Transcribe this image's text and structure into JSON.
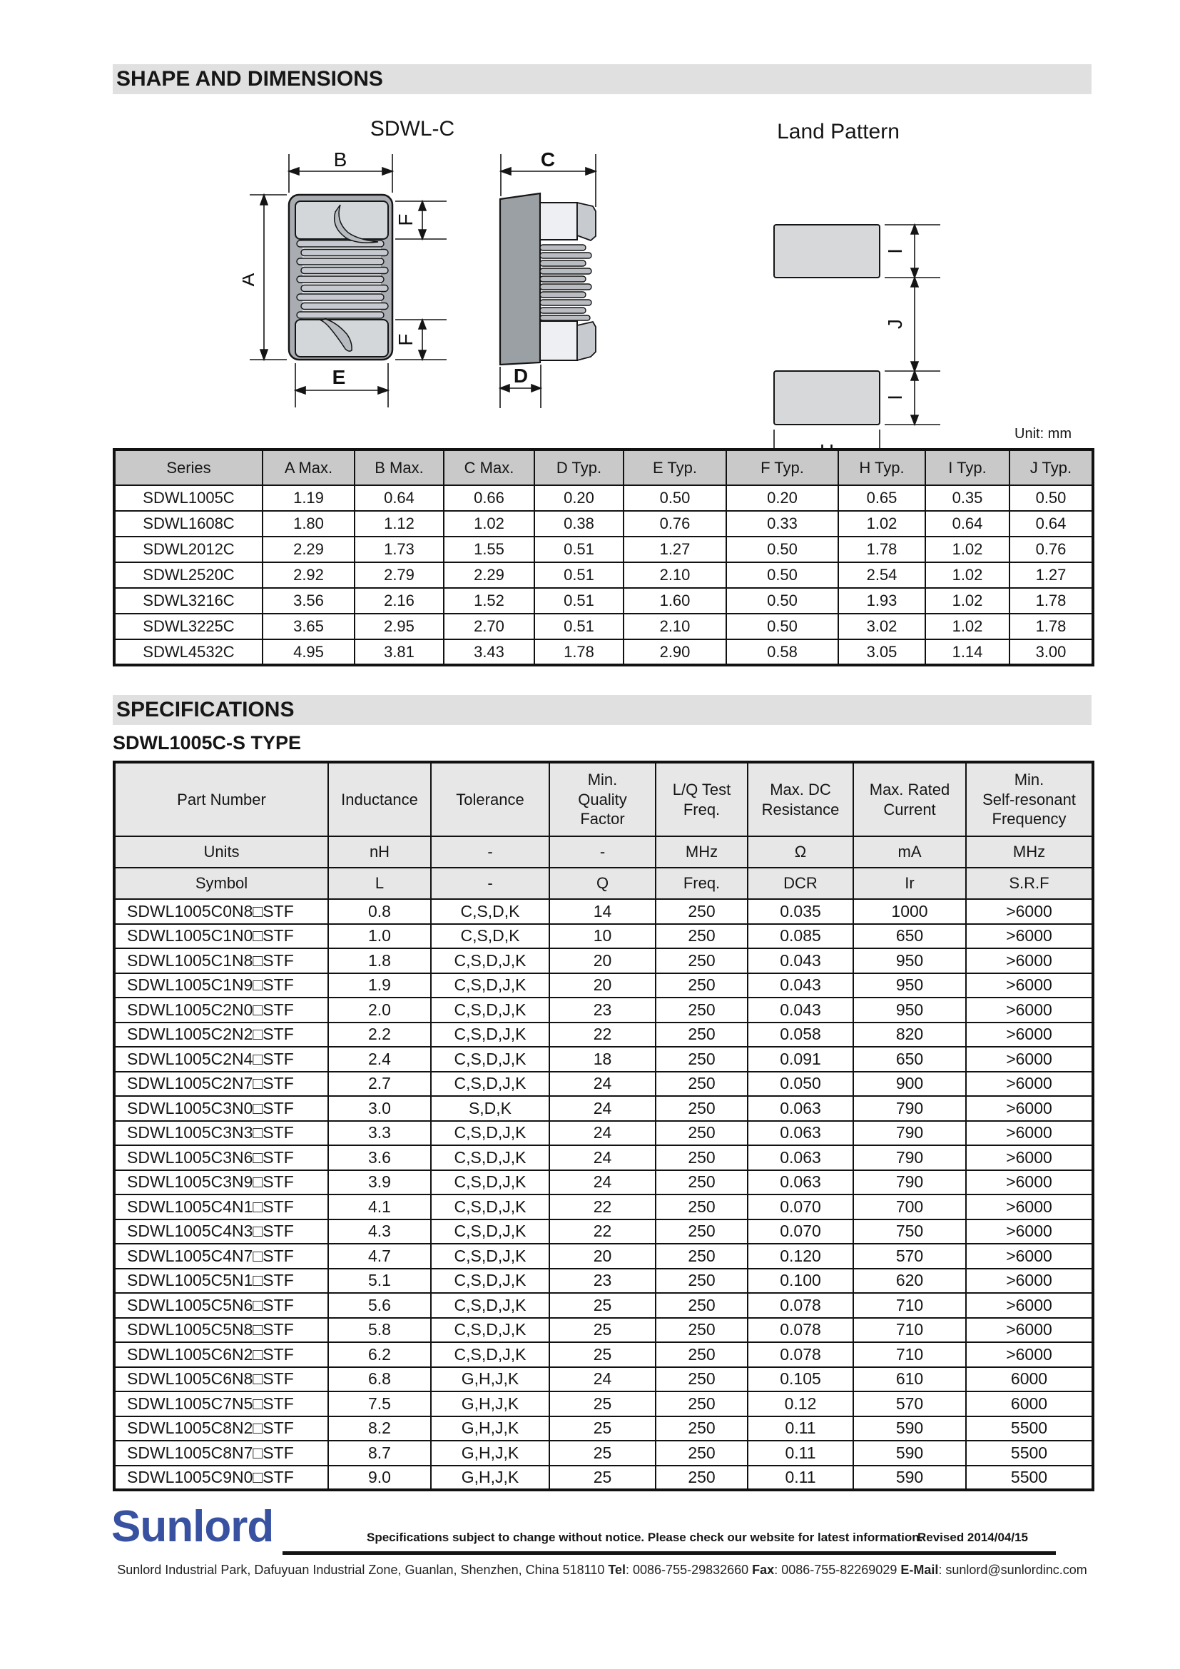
{
  "colors": {
    "logo-blue": "#3852a1",
    "bar-bg": "#e0e0e0",
    "th-gray": "#c9c9c9",
    "th-light": "#e7e7e7",
    "ink": "#1a1a1a",
    "line": "#111111"
  },
  "page": {
    "section1_title": "SHAPE AND DIMENSIONS",
    "section2_title": "SPECIFICATIONS",
    "subtype_title": "SDWL1005C-S TYPE",
    "unit_note": "Unit: mm"
  },
  "drawings": {
    "front_title": "SDWL-C",
    "land_title": "Land Pattern",
    "labels": {
      "A": "A",
      "B": "B",
      "C": "C",
      "D": "D",
      "E": "E",
      "F": "F",
      "H": "H",
      "I": "I",
      "J": "J"
    }
  },
  "dimensions_table": {
    "headers": [
      "Series",
      "A Max.",
      "B Max.",
      "C Max.",
      "D Typ.",
      "E Typ.",
      "F Typ.",
      "H Typ.",
      "I Typ.",
      "J Typ."
    ],
    "rows": [
      [
        "SDWL1005C",
        "1.19",
        "0.64",
        "0.66",
        "0.20",
        "0.50",
        "0.20",
        "0.65",
        "0.35",
        "0.50"
      ],
      [
        "SDWL1608C",
        "1.80",
        "1.12",
        "1.02",
        "0.38",
        "0.76",
        "0.33",
        "1.02",
        "0.64",
        "0.64"
      ],
      [
        "SDWL2012C",
        "2.29",
        "1.73",
        "1.55",
        "0.51",
        "1.27",
        "0.50",
        "1.78",
        "1.02",
        "0.76"
      ],
      [
        "SDWL2520C",
        "2.92",
        "2.79",
        "2.29",
        "0.51",
        "2.10",
        "0.50",
        "2.54",
        "1.02",
        "1.27"
      ],
      [
        "SDWL3216C",
        "3.56",
        "2.16",
        "1.52",
        "0.51",
        "1.60",
        "0.50",
        "1.93",
        "1.02",
        "1.78"
      ],
      [
        "SDWL3225C",
        "3.65",
        "2.95",
        "2.70",
        "0.51",
        "2.10",
        "0.50",
        "3.02",
        "1.02",
        "1.78"
      ],
      [
        "SDWL4532C",
        "4.95",
        "3.81",
        "3.43",
        "1.78",
        "2.90",
        "0.58",
        "3.05",
        "1.14",
        "3.00"
      ]
    ]
  },
  "spec_table": {
    "headers": [
      "Part Number",
      "Inductance",
      "Tolerance",
      "Min.\nQuality\nFactor",
      "L/Q Test\nFreq.",
      "Max. DC\nResistance",
      "Max. Rated\nCurrent",
      "Min.\nSelf-resonant\nFrequency"
    ],
    "units_row": [
      "Units",
      "nH",
      "-",
      "-",
      "MHz",
      "Ω",
      "mA",
      "MHz"
    ],
    "symbol_row": [
      "Symbol",
      "L",
      "-",
      "Q",
      "Freq.",
      "DCR",
      "Ir",
      "S.R.F"
    ],
    "rows": [
      [
        "SDWL1005C0N8□STF",
        "0.8",
        "C,S,D,K",
        "14",
        "250",
        "0.035",
        "1000",
        ">6000"
      ],
      [
        "SDWL1005C1N0□STF",
        "1.0",
        "C,S,D,K",
        "10",
        "250",
        "0.085",
        "650",
        ">6000"
      ],
      [
        "SDWL1005C1N8□STF",
        "1.8",
        "C,S,D,J,K",
        "20",
        "250",
        "0.043",
        "950",
        ">6000"
      ],
      [
        "SDWL1005C1N9□STF",
        "1.9",
        "C,S,D,J,K",
        "20",
        "250",
        "0.043",
        "950",
        ">6000"
      ],
      [
        "SDWL1005C2N0□STF",
        "2.0",
        "C,S,D,J,K",
        "23",
        "250",
        "0.043",
        "950",
        ">6000"
      ],
      [
        "SDWL1005C2N2□STF",
        "2.2",
        "C,S,D,J,K",
        "22",
        "250",
        "0.058",
        "820",
        ">6000"
      ],
      [
        "SDWL1005C2N4□STF",
        "2.4",
        "C,S,D,J,K",
        "18",
        "250",
        "0.091",
        "650",
        ">6000"
      ],
      [
        "SDWL1005C2N7□STF",
        "2.7",
        "C,S,D,J,K",
        "24",
        "250",
        "0.050",
        "900",
        ">6000"
      ],
      [
        "SDWL1005C3N0□STF",
        "3.0",
        "S,D,K",
        "24",
        "250",
        "0.063",
        "790",
        ">6000"
      ],
      [
        "SDWL1005C3N3□STF",
        "3.3",
        "C,S,D,J,K",
        "24",
        "250",
        "0.063",
        "790",
        ">6000"
      ],
      [
        "SDWL1005C3N6□STF",
        "3.6",
        "C,S,D,J,K",
        "24",
        "250",
        "0.063",
        "790",
        ">6000"
      ],
      [
        "SDWL1005C3N9□STF",
        "3.9",
        "C,S,D,J,K",
        "24",
        "250",
        "0.063",
        "790",
        ">6000"
      ],
      [
        "SDWL1005C4N1□STF",
        "4.1",
        "C,S,D,J,K",
        "22",
        "250",
        "0.070",
        "700",
        ">6000"
      ],
      [
        "SDWL1005C4N3□STF",
        "4.3",
        "C,S,D,J,K",
        "22",
        "250",
        "0.070",
        "750",
        ">6000"
      ],
      [
        "SDWL1005C4N7□STF",
        "4.7",
        "C,S,D,J,K",
        "20",
        "250",
        "0.120",
        "570",
        ">6000"
      ],
      [
        "SDWL1005C5N1□STF",
        "5.1",
        "C,S,D,J,K",
        "23",
        "250",
        "0.100",
        "620",
        ">6000"
      ],
      [
        "SDWL1005C5N6□STF",
        "5.6",
        "C,S,D,J,K",
        "25",
        "250",
        "0.078",
        "710",
        ">6000"
      ],
      [
        "SDWL1005C5N8□STF",
        "5.8",
        "C,S,D,J,K",
        "25",
        "250",
        "0.078",
        "710",
        ">6000"
      ],
      [
        "SDWL1005C6N2□STF",
        "6.2",
        "C,S,D,J,K",
        "25",
        "250",
        "0.078",
        "710",
        ">6000"
      ],
      [
        "SDWL1005C6N8□STF",
        "6.8",
        "G,H,J,K",
        "24",
        "250",
        "0.105",
        "610",
        "6000"
      ],
      [
        "SDWL1005C7N5□STF",
        "7.5",
        "G,H,J,K",
        "25",
        "250",
        "0.12",
        "570",
        "6000"
      ],
      [
        "SDWL1005C8N2□STF",
        "8.2",
        "G,H,J,K",
        "25",
        "250",
        "0.11",
        "590",
        "5500"
      ],
      [
        "SDWL1005C8N7□STF",
        "8.7",
        "G,H,J,K",
        "25",
        "250",
        "0.11",
        "590",
        "5500"
      ],
      [
        "SDWL1005C9N0□STF",
        "9.0",
        "G,H,J,K",
        "25",
        "250",
        "0.11",
        "590",
        "5500"
      ]
    ]
  },
  "footer": {
    "logo": "Sunlord",
    "disclaimer": "Specifications subject to change without notice. Please check our website for latest information.",
    "revised": "Revised 2014/04/15",
    "address_pre": "Sunlord Industrial Park, Dafuyuan Industrial Zone, Guanlan, Shenzhen, China 518110 ",
    "tel_label": "Tel",
    "tel_value": ": 0086-755-29832660 ",
    "fax_label": "Fax",
    "fax_value": ": 0086-755-82269029 ",
    "email_label": "E-Mail",
    "email_value": ": sunlord@sunlordinc.com"
  }
}
